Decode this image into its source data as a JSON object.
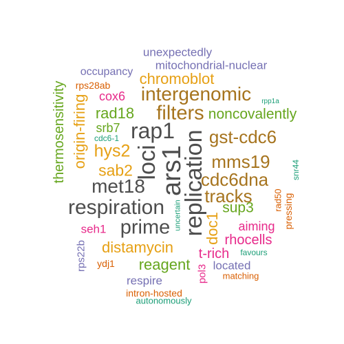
{
  "colors": {
    "gray": "#4d4d4d",
    "orange": "#e6a014",
    "brown": "#a6741e",
    "green": "#66a61e",
    "purple": "#7570b3",
    "magenta": "#e7298a",
    "red": "#d95f02",
    "teal": "#1b9e77"
  },
  "words": [
    {
      "text": "unexpectedly",
      "color": "purple"
    },
    {
      "text": "mitochondrial-nuclear",
      "color": "purple"
    },
    {
      "text": "occupancy",
      "color": "purple"
    },
    {
      "text": "chromoblot",
      "color": "orange"
    },
    {
      "text": "thermosensitivity",
      "color": "green"
    },
    {
      "text": "rps28ab",
      "color": "red"
    },
    {
      "text": "cox6",
      "color": "magenta"
    },
    {
      "text": "intergenomic",
      "color": "brown"
    },
    {
      "text": "origin-firing",
      "color": "orange"
    },
    {
      "text": "rad18",
      "color": "green"
    },
    {
      "text": "filters",
      "color": "brown"
    },
    {
      "text": "noncovalently",
      "color": "green"
    },
    {
      "text": "rpp1a",
      "color": "teal"
    },
    {
      "text": "srb7",
      "color": "green"
    },
    {
      "text": "rap1",
      "color": "gray"
    },
    {
      "text": "gst-cdc6",
      "color": "brown"
    },
    {
      "text": "cdc6-1",
      "color": "teal"
    },
    {
      "text": "hys2",
      "color": "orange"
    },
    {
      "text": "loci",
      "color": "gray"
    },
    {
      "text": "ars1",
      "color": "gray"
    },
    {
      "text": "replication",
      "color": "gray"
    },
    {
      "text": "mms19",
      "color": "brown"
    },
    {
      "text": "sab2",
      "color": "orange"
    },
    {
      "text": "snr44",
      "color": "teal"
    },
    {
      "text": "cdc6dna",
      "color": "brown"
    },
    {
      "text": "met18",
      "color": "gray"
    },
    {
      "text": "tracks",
      "color": "brown"
    },
    {
      "text": "rad50",
      "color": "red"
    },
    {
      "text": "respiration",
      "color": "gray"
    },
    {
      "text": "uncertain",
      "color": "teal"
    },
    {
      "text": "sup3",
      "color": "green"
    },
    {
      "text": "pressing",
      "color": "red"
    },
    {
      "text": "doc1",
      "color": "orange"
    },
    {
      "text": "prime",
      "color": "gray"
    },
    {
      "text": "seh1",
      "color": "magenta"
    },
    {
      "text": "aiming",
      "color": "magenta"
    },
    {
      "text": "rps22b",
      "color": "purple"
    },
    {
      "text": "rhocells",
      "color": "magenta"
    },
    {
      "text": "distamycin",
      "color": "orange"
    },
    {
      "text": "t-rich",
      "color": "magenta"
    },
    {
      "text": "favours",
      "color": "teal"
    },
    {
      "text": "ydj1",
      "color": "red"
    },
    {
      "text": "reagent",
      "color": "green"
    },
    {
      "text": "pol3",
      "color": "magenta"
    },
    {
      "text": "located",
      "color": "purple"
    },
    {
      "text": "matching",
      "color": "red"
    },
    {
      "text": "respire",
      "color": "purple"
    },
    {
      "text": "intron-hosted",
      "color": "red"
    },
    {
      "text": "autonomously",
      "color": "teal"
    }
  ]
}
